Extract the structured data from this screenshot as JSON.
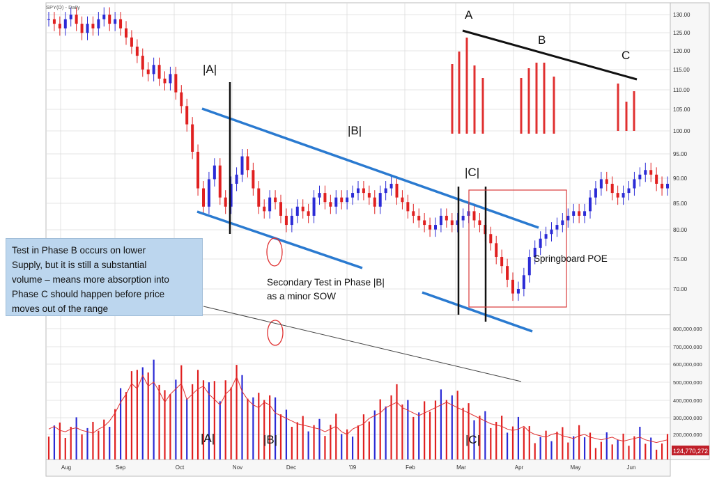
{
  "chart_data": {
    "type": "candlestick",
    "title": "SPY(D) - Daily",
    "x_ticks": [
      "Aug",
      "Sep",
      "Oct",
      "Nov",
      "Dec",
      "'09",
      "Feb",
      "Mar",
      "Apr",
      "May",
      "Jun"
    ],
    "price_ticks": [
      "130.00",
      "125.00",
      "120.00",
      "115.00",
      "110.00",
      "105.00",
      "100.00",
      "95.00",
      "90.00",
      "85.00",
      "80.00",
      "75.00",
      "70.00"
    ],
    "volume_ticks": [
      "800,000,000",
      "700,000,000",
      "600,000,000",
      "500,000,000",
      "400,000,000",
      "300,000,000",
      "200,000,000"
    ],
    "last_volume_label": "124,770,272",
    "price_close_path": [
      129,
      128,
      127,
      129,
      130,
      128,
      126,
      128,
      127,
      129,
      130,
      128,
      129,
      127,
      125,
      123,
      121,
      118,
      117,
      119,
      116,
      115,
      117,
      113,
      110,
      106,
      100,
      92,
      88,
      94,
      97,
      90,
      88,
      93,
      95,
      99,
      96,
      92,
      88,
      87,
      90,
      89,
      86,
      84,
      86,
      88,
      87,
      86,
      90,
      91,
      89,
      88,
      90,
      89,
      90,
      91,
      92,
      91,
      90,
      88,
      91,
      92,
      93,
      90,
      89,
      87,
      86,
      85,
      84,
      83,
      84,
      86,
      85,
      84,
      85,
      86,
      87,
      85,
      84,
      82,
      80,
      77,
      75,
      72,
      69,
      70,
      73,
      77,
      79,
      81,
      82,
      83,
      84,
      85,
      86,
      87,
      86,
      87,
      90,
      92,
      94,
      93,
      91,
      90,
      91,
      92,
      94,
      95,
      96,
      95,
      93,
      92,
      93
    ],
    "volume_profile": [
      300,
      320,
      290,
      280,
      300,
      310,
      290,
      280,
      270,
      300,
      320,
      360,
      420,
      500,
      560,
      640,
      600,
      700,
      620,
      650,
      580,
      500,
      560,
      600,
      640,
      520,
      560,
      600,
      620,
      560,
      520,
      480,
      560,
      600,
      690,
      580,
      520,
      480,
      460,
      500,
      480,
      420,
      400,
      380,
      360,
      340,
      330,
      320,
      310,
      300,
      280,
      300,
      320,
      280,
      260,
      300,
      320,
      340,
      380,
      400,
      420,
      460,
      480,
      500,
      460,
      440,
      420,
      400,
      420,
      440,
      460,
      480,
      500,
      480,
      460,
      440,
      420,
      400,
      380,
      360,
      340,
      330,
      320,
      300,
      290,
      300,
      320,
      280,
      260,
      250,
      240,
      260,
      270,
      250,
      240,
      230,
      250,
      260,
      240,
      230,
      220,
      230,
      240,
      220,
      210,
      220,
      230,
      240,
      220,
      210,
      200,
      210,
      220
    ],
    "annotations": {
      "phase_a": "|A|",
      "phase_b": "|B|",
      "phase_c": "|C|",
      "vol_a": "|A|",
      "vol_b": "|B|",
      "vol_c": "|C|",
      "point_a": "A",
      "point_b": "B",
      "point_c": "C",
      "springboard": "Springboard POE",
      "secondary_test_line1": "Secondary Test in Phase |B|",
      "secondary_test_line2": "as a minor SOW"
    },
    "note_lines": [
      "Test in Phase B occurs on lower",
      "Supply, but it is still a substantial",
      "volume – means more absorption into",
      "Phase C should happen before price",
      "moves out of the range"
    ]
  },
  "colors": {
    "up": "#2b2bd6",
    "down": "#e02020",
    "trend": "#2a7ad0",
    "accent_red": "#e03030",
    "grid": "#dcdcdc"
  }
}
